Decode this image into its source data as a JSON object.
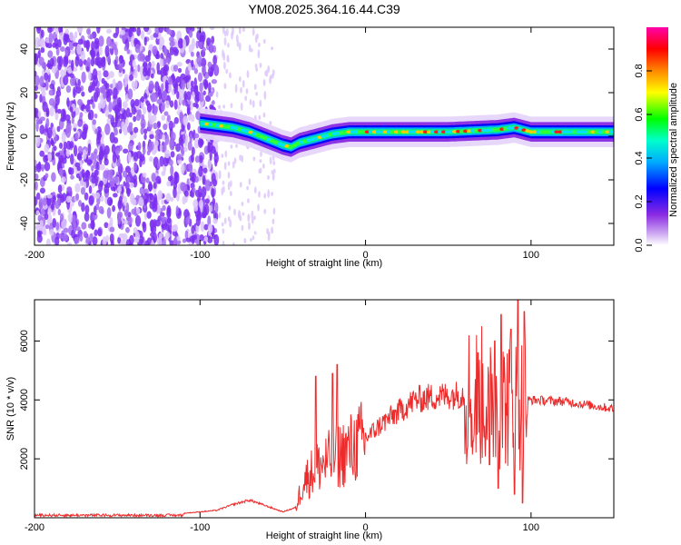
{
  "title": "YM08.2025.364.16.44.C39",
  "chart_data": [
    {
      "type": "heatmap",
      "name": "spectrogram",
      "xlabel": "Height of straight line (km)",
      "ylabel": "Frequency (Hz)",
      "xlim": [
        -200,
        150
      ],
      "ylim": [
        -50,
        50
      ],
      "x_ticks": [
        -200,
        -100,
        0,
        100
      ],
      "x_tick_labels": [
        "-200",
        "-100",
        "0",
        "100"
      ],
      "y_ticks": [
        -40,
        -20,
        0,
        20,
        40
      ],
      "y_tick_labels": [
        "-40",
        "-20",
        "0",
        "20",
        "40"
      ],
      "ridge_frequency_hz": [
        {
          "x": -100,
          "y": 6
        },
        {
          "x": -90,
          "y": 5
        },
        {
          "x": -80,
          "y": 4
        },
        {
          "x": -70,
          "y": 2
        },
        {
          "x": -60,
          "y": -1
        },
        {
          "x": -50,
          "y": -4
        },
        {
          "x": -45,
          "y": -5
        },
        {
          "x": -40,
          "y": -3
        },
        {
          "x": -30,
          "y": -1
        },
        {
          "x": -20,
          "y": 1
        },
        {
          "x": -10,
          "y": 2
        },
        {
          "x": 0,
          "y": 2
        },
        {
          "x": 20,
          "y": 2
        },
        {
          "x": 50,
          "y": 2
        },
        {
          "x": 80,
          "y": 3
        },
        {
          "x": 90,
          "y": 4
        },
        {
          "x": 100,
          "y": 2
        },
        {
          "x": 150,
          "y": 2
        }
      ],
      "colorbar": {
        "label": "Normalized spectral amplitude",
        "range": [
          0,
          1
        ],
        "ticks": [
          0.0,
          0.2,
          0.4,
          0.6,
          0.8
        ],
        "tick_labels": [
          "0.0",
          "0.2",
          "0.4",
          "0.6",
          "0.8"
        ],
        "colormap": [
          "#ffffff",
          "#8a2be2",
          "#0000ff",
          "#00ffff",
          "#00ff00",
          "#ffff00",
          "#ff8800",
          "#ff0000",
          "#ff00aa"
        ]
      }
    },
    {
      "type": "line",
      "name": "snr",
      "xlabel": "Height of straight line (km)",
      "ylabel": "SNR (10 * v/v)",
      "xlim": [
        -200,
        150
      ],
      "ylim": [
        0,
        7400
      ],
      "x_ticks": [
        -200,
        -100,
        0,
        100
      ],
      "x_tick_labels": [
        "-200",
        "-100",
        "0",
        "100"
      ],
      "y_ticks": [
        2000,
        4000,
        6000
      ],
      "y_tick_labels": [
        "2000",
        "4000",
        "6000"
      ],
      "color": "#ee2a2a",
      "envelope": [
        {
          "x": -200,
          "y": 80
        },
        {
          "x": -120,
          "y": 100
        },
        {
          "x": -90,
          "y": 250
        },
        {
          "x": -80,
          "y": 450
        },
        {
          "x": -70,
          "y": 600
        },
        {
          "x": -60,
          "y": 400
        },
        {
          "x": -50,
          "y": 200
        },
        {
          "x": -42,
          "y": 350
        },
        {
          "x": -38,
          "y": 1200
        },
        {
          "x": -30,
          "y": 1700
        },
        {
          "x": -20,
          "y": 2000
        },
        {
          "x": -10,
          "y": 2300
        },
        {
          "x": 0,
          "y": 2700
        },
        {
          "x": 10,
          "y": 3200
        },
        {
          "x": 20,
          "y": 3600
        },
        {
          "x": 30,
          "y": 4000
        },
        {
          "x": 40,
          "y": 4100
        },
        {
          "x": 50,
          "y": 4150
        },
        {
          "x": 60,
          "y": 4200
        },
        {
          "x": 70,
          "y": 4100
        },
        {
          "x": 80,
          "y": 4000
        },
        {
          "x": 90,
          "y": 3900
        },
        {
          "x": 100,
          "y": 4000
        },
        {
          "x": 120,
          "y": 3950
        },
        {
          "x": 150,
          "y": 3700
        }
      ],
      "spikes": [
        {
          "x": -30,
          "y": 4800
        },
        {
          "x": -20,
          "y": 4900
        },
        {
          "x": -17,
          "y": 5200
        },
        {
          "x": 68,
          "y": 5600
        },
        {
          "x": 78,
          "y": 6000
        },
        {
          "x": 82,
          "y": 6900
        },
        {
          "x": 88,
          "y": 6400
        },
        {
          "x": 92,
          "y": 7400
        },
        {
          "x": 96,
          "y": 7000
        }
      ],
      "dips": [
        {
          "x": 65,
          "y": 2600
        },
        {
          "x": 75,
          "y": 1800
        },
        {
          "x": 80,
          "y": 1000
        },
        {
          "x": 90,
          "y": 800
        },
        {
          "x": 95,
          "y": 500
        }
      ]
    }
  ]
}
